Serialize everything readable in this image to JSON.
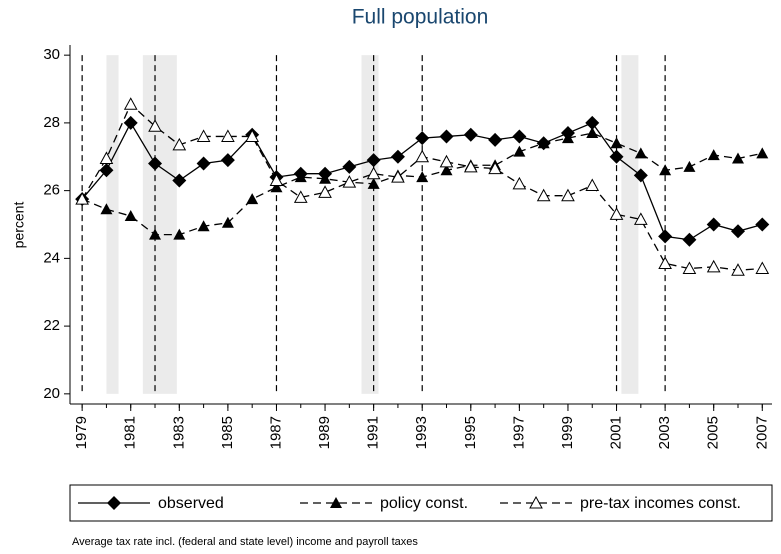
{
  "chart_data": {
    "type": "line",
    "title": "Full population",
    "y_label": "percent",
    "note": "Average tax rate incl. (federal and state level) income and payroll taxes",
    "x": [
      1979,
      1980,
      1981,
      1982,
      1983,
      1984,
      1985,
      1986,
      1987,
      1988,
      1989,
      1990,
      1991,
      1992,
      1993,
      1994,
      1995,
      1996,
      1997,
      1998,
      1999,
      2000,
      2001,
      2002,
      2003,
      2004,
      2005,
      2006,
      2007
    ],
    "series": [
      {
        "name": "observed",
        "color": "#000000",
        "dash": false,
        "marker": "diamond",
        "values": [
          25.75,
          26.6,
          28.0,
          26.8,
          26.3,
          26.8,
          26.9,
          27.65,
          26.4,
          26.5,
          26.5,
          26.7,
          26.9,
          27.0,
          27.55,
          27.6,
          27.65,
          27.5,
          27.6,
          27.4,
          27.7,
          28.0,
          27.0,
          26.45,
          24.65,
          24.55,
          25.0,
          24.8,
          25.0
        ]
      },
      {
        "name": "policy const.",
        "color": "#000000",
        "dash": true,
        "marker": "triangle",
        "values": [
          25.75,
          25.45,
          25.25,
          24.7,
          24.7,
          24.95,
          25.05,
          25.75,
          26.1,
          26.4,
          26.35,
          26.25,
          26.2,
          26.45,
          26.4,
          26.6,
          26.75,
          26.75,
          27.15,
          27.4,
          27.55,
          27.7,
          27.4,
          27.1,
          26.6,
          26.7,
          27.05,
          26.95,
          27.1
        ]
      },
      {
        "name": "pre-tax incomes const.",
        "color": "#000000",
        "dash": true,
        "marker": "triangle-open",
        "values": [
          25.75,
          26.95,
          28.55,
          27.9,
          27.35,
          27.6,
          27.6,
          27.6,
          26.3,
          25.8,
          25.95,
          26.25,
          26.5,
          26.4,
          27.0,
          26.85,
          26.7,
          26.65,
          26.2,
          25.85,
          25.85,
          26.15,
          25.3,
          25.15,
          23.85,
          23.7,
          23.75,
          23.65,
          23.7
        ]
      }
    ],
    "xlim": [
      1978.5,
      2007.4
    ],
    "xticks": [
      1979,
      1981,
      1983,
      1985,
      1987,
      1989,
      1991,
      1993,
      1995,
      1997,
      1999,
      2001,
      2003,
      2005,
      2007
    ],
    "ylim": [
      19.7,
      30.3
    ],
    "yticks": [
      20,
      22,
      24,
      26,
      28,
      30
    ],
    "vlines": [
      1979,
      1982,
      1987,
      1991,
      1993,
      2001,
      2003
    ],
    "shaded": [
      [
        1980,
        1980.5
      ],
      [
        1981.5,
        1982.9
      ],
      [
        1990.5,
        1991.2
      ],
      [
        2001.2,
        2001.9
      ]
    ],
    "legend": "bottom"
  }
}
